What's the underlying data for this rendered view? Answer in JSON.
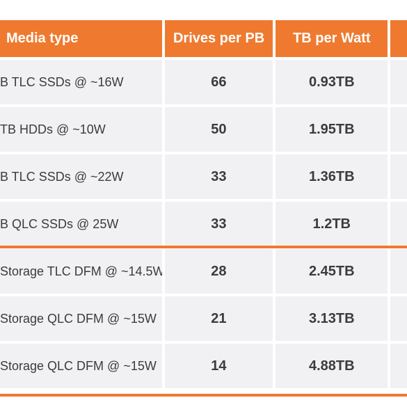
{
  "table": {
    "headers": [
      "Media type",
      "Drives per PB",
      "TB per Watt"
    ],
    "rows": [
      {
        "media": "B TLC SSDs @ ~16W",
        "drives": "66",
        "tbw": "0.93TB"
      },
      {
        "media": "TB HDDs @ ~10W",
        "drives": "50",
        "tbw": "1.95TB"
      },
      {
        "media": "B TLC SSDs @ ~22W",
        "drives": "33",
        "tbw": "1.36TB"
      },
      {
        "media": "B QLC SSDs @ 25W",
        "drives": "33",
        "tbw": "1.2TB"
      },
      {
        "media": "Storage TLC DFM @ ~14.5W",
        "drives": "28",
        "tbw": "2.45TB"
      },
      {
        "media": "Storage QLC DFM @ ~15W",
        "drives": "21",
        "tbw": "3.13TB"
      },
      {
        "media": "Storage QLC DFM @ ~15W",
        "drives": "14",
        "tbw": "4.88TB"
      }
    ]
  },
  "colors": {
    "accent": "#ef7a2f",
    "row_bg": "#f1f1f4",
    "text": "#3b3b3f"
  }
}
